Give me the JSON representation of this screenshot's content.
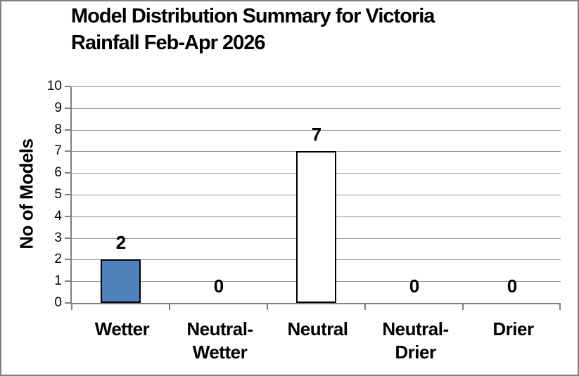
{
  "frame": {
    "border_color": "#808080",
    "background": "#ffffff"
  },
  "chart_data": {
    "type": "bar",
    "title": "Model Distribution Summary for Victoria Rainfall Feb-Apr 2026",
    "title_lines": [
      "Model Distribution Summary for Victoria",
      "Rainfall Feb-Apr 2026"
    ],
    "ylabel": "No of Models",
    "xlabel": "",
    "categories": [
      "Wetter",
      "Neutral-\nWetter",
      "Neutral",
      "Neutral-\nDrier",
      "Drier"
    ],
    "values": [
      2,
      0,
      7,
      0,
      0
    ],
    "data_labels": [
      "2",
      "0",
      "7",
      "0",
      "0"
    ],
    "ylim": [
      0,
      10
    ],
    "yticks": [
      0,
      1,
      2,
      3,
      4,
      5,
      6,
      7,
      8,
      9,
      10
    ],
    "grid": "horizontal-major",
    "legend": "none",
    "colors": {
      "bar_fills": [
        "#4f81bd",
        "#ffffff",
        "#ffffff",
        "#ffffff",
        "#ffffff"
      ],
      "bar_border": "#000000",
      "gridline": "#969696",
      "axis": "#7f7f7f",
      "text": "#000000"
    }
  }
}
